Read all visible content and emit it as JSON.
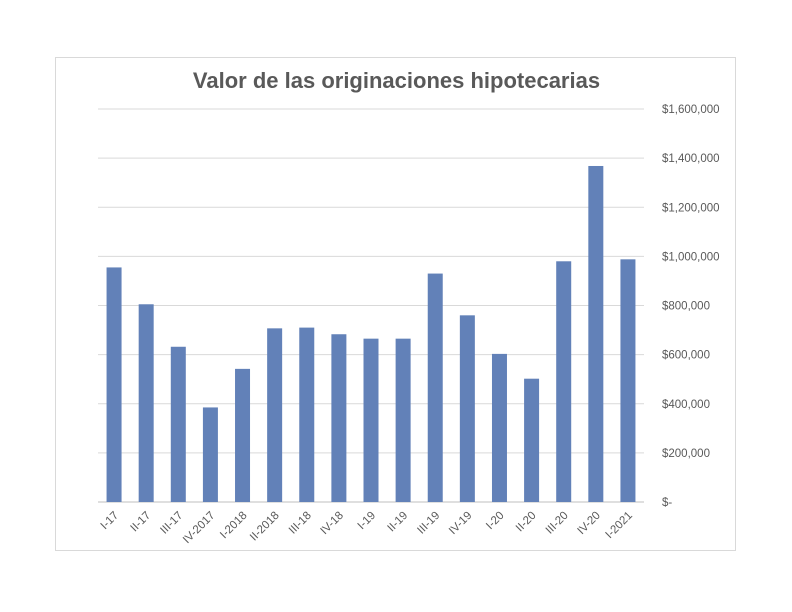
{
  "chart_data": {
    "type": "bar",
    "title": "Valor de las originaciones hipotecarias",
    "categories": [
      "I-17",
      "II-17",
      "III-17",
      "IV-2017",
      "I-2018",
      "II-2018",
      "III-18",
      "IV-18",
      "I-19",
      "II-19",
      "III-19",
      "IV-19",
      "I-20",
      "II-20",
      "III-20",
      "IV-20",
      "I-2021"
    ],
    "values": [
      955000,
      805000,
      632000,
      385000,
      542000,
      707000,
      710000,
      683000,
      665000,
      665000,
      930000,
      760000,
      603000,
      502000,
      980000,
      1368000,
      988000
    ],
    "ylim": [
      0,
      1600000
    ],
    "yticks": [
      0,
      200000,
      400000,
      600000,
      800000,
      1000000,
      1200000,
      1400000,
      1600000
    ],
    "ytick_labels": [
      "$-",
      "$200,000",
      "$400,000",
      "$600,000",
      "$800,000",
      "$1,000,000",
      "$1,200,000",
      "$1,400,000",
      "$1,600,000"
    ],
    "y_axis_side": "right",
    "grid": true,
    "bar_color": "#6281b8",
    "grid_color": "#d9d9d9"
  }
}
